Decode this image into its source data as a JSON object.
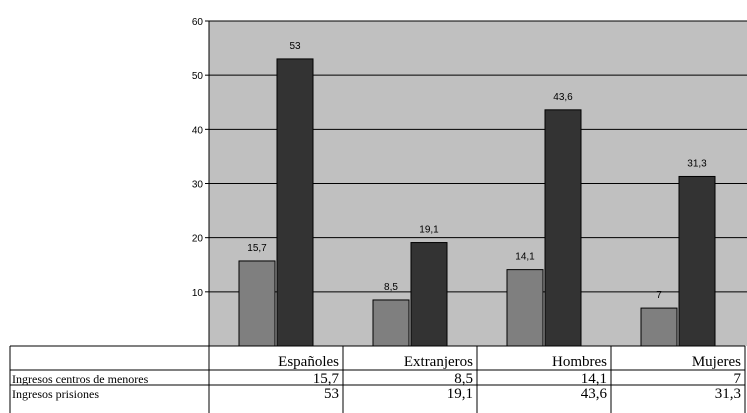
{
  "chart_data": {
    "type": "bar",
    "categories": [
      "Españoles",
      "Extranjeros",
      "Hombres",
      "Mujeres"
    ],
    "series": [
      {
        "name": "Ingresos centros de menores",
        "values": [
          15.7,
          8.5,
          14.1,
          7
        ],
        "color": "#7f7f7f"
      },
      {
        "name": "Ingresos prisiones",
        "values": [
          53,
          19.1,
          43.6,
          31.3
        ],
        "color": "#333333"
      }
    ],
    "data_labels": [
      [
        "15,7",
        "8,5",
        "14,1",
        "7"
      ],
      [
        "53",
        "19,1",
        "43,6",
        "31,3"
      ]
    ],
    "table_values": [
      [
        "15,7",
        "8,5",
        "14,1",
        "7"
      ],
      [
        "53",
        "19,1",
        "43,6",
        "31,3"
      ]
    ],
    "yticks": [
      "10",
      "20",
      "30",
      "40",
      "50",
      "60"
    ],
    "ylim": [
      0,
      60
    ],
    "grid": true,
    "plot_background": "#c0c0c0",
    "title": "",
    "xlabel": "",
    "ylabel": "",
    "legend": "data table below chart"
  }
}
